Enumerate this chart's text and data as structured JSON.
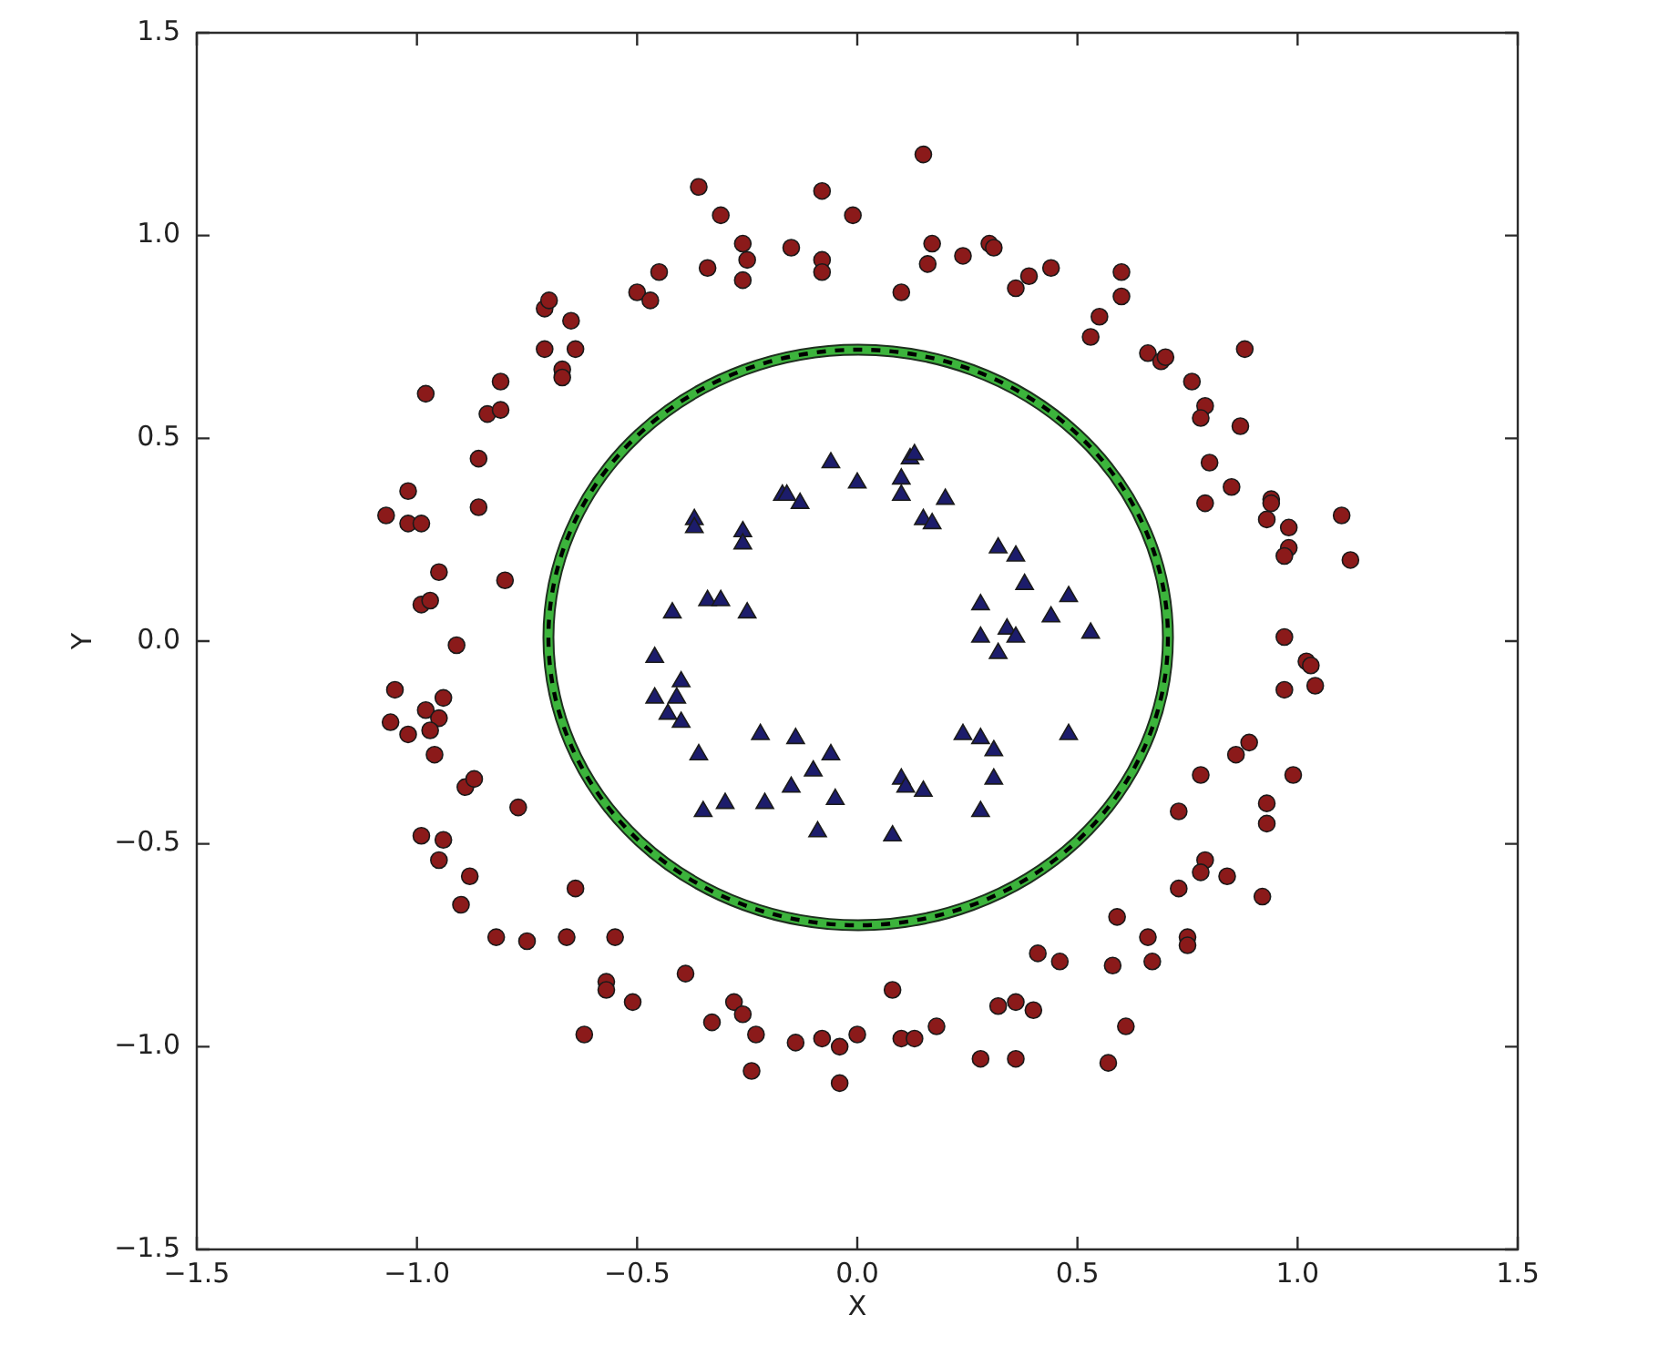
{
  "chart_data": {
    "type": "scatter",
    "xlabel": "X",
    "ylabel": "Y",
    "xlim": [
      -1.5,
      1.5
    ],
    "ylim": [
      -1.5,
      1.5
    ],
    "xticks": [
      {
        "value": -1.5,
        "label": "−1.5"
      },
      {
        "value": -1,
        "label": "−1.0"
      },
      {
        "value": -0.5,
        "label": "−0.5"
      },
      {
        "value": 0,
        "label": "0.0"
      },
      0.5,
      {
        "value": 1,
        "label": "1.0"
      },
      1.5
    ],
    "yticks": [
      {
        "value": -1.5,
        "label": "−1.5"
      },
      {
        "value": -1,
        "label": "−1.0"
      },
      {
        "value": -0.5,
        "label": "−0.5"
      },
      {
        "value": 0,
        "label": "0.0"
      },
      0.5,
      {
        "value": 1,
        "label": "1.0"
      },
      1.5
    ],
    "series": [
      {
        "type": "scatter",
        "marker": "circle",
        "color": "#8b1a1a",
        "x": [
          -0.36,
          -0.31,
          -0.08,
          -0.01,
          0.15,
          -0.26,
          -0.25,
          -0.26,
          -0.15,
          -0.34,
          -0.45,
          -0.5,
          -0.47,
          -0.08,
          -0.08,
          0.1,
          0.16,
          0.17,
          0.24,
          0.3,
          0.31,
          0.36,
          0.39,
          0.44,
          -0.71,
          -0.7,
          -0.65,
          -0.71,
          -0.64,
          -0.67,
          -0.67,
          -0.81,
          -0.98,
          -0.84,
          -0.81,
          -0.86,
          -1.02,
          -1.07,
          -1.02,
          -0.99,
          -0.86,
          -0.95,
          -0.8,
          -0.99,
          -0.97,
          -0.91,
          -1.05,
          -0.94,
          -0.98,
          -0.95,
          -1.06,
          -1.02,
          -0.97,
          -0.96,
          -0.89,
          -0.87,
          -0.77,
          -0.99,
          -0.94,
          -0.95,
          -0.88,
          -0.9,
          -0.82,
          -0.75,
          -0.64,
          -0.66,
          -0.55,
          -0.57,
          -0.57,
          -0.51,
          -0.62,
          -0.39,
          -0.28,
          -0.26,
          -0.33,
          -0.23,
          -0.14,
          -0.08,
          -0.04,
          0,
          -0.24,
          -0.04,
          0.08,
          0.1,
          0.13,
          0.18,
          0.28,
          0.32,
          0.36,
          0.4,
          0.36,
          0.41,
          0.46,
          0.97,
          1.02,
          1.03,
          0.97,
          1.04,
          0.89,
          0.86,
          0.99,
          0.78,
          0.93,
          0.93,
          0.73,
          0.79,
          0.78,
          0.84,
          0.73,
          0.92,
          0.59,
          0.66,
          0.75,
          0.75,
          0.58,
          0.67,
          0.61,
          0.57,
          0.6,
          0.6,
          0.55,
          0.53,
          0.66,
          0.69,
          0.7,
          0.88,
          0.76,
          0.79,
          0.78,
          0.87,
          0.8,
          0.85,
          0.79,
          0.94,
          0.94,
          0.93,
          0.98,
          0.98,
          0.97,
          1.1,
          1.12
        ],
        "values": [
          1.12,
          1.05,
          1.11,
          1.05,
          1.2,
          0.98,
          0.94,
          0.89,
          0.97,
          0.92,
          0.91,
          0.86,
          0.84,
          0.94,
          0.91,
          0.86,
          0.93,
          0.98,
          0.95,
          0.98,
          0.97,
          0.87,
          0.9,
          0.92,
          0.82,
          0.84,
          0.79,
          0.72,
          0.72,
          0.67,
          0.65,
          0.64,
          0.61,
          0.56,
          0.57,
          0.45,
          0.37,
          0.31,
          0.29,
          0.29,
          0.33,
          0.17,
          0.15,
          0.09,
          0.1,
          -0.01,
          -0.12,
          -0.14,
          -0.17,
          -0.19,
          -0.2,
          -0.23,
          -0.22,
          -0.28,
          -0.36,
          -0.34,
          -0.41,
          -0.48,
          -0.49,
          -0.54,
          -0.58,
          -0.65,
          -0.73,
          -0.74,
          -0.61,
          -0.73,
          -0.73,
          -0.84,
          -0.86,
          -0.89,
          -0.97,
          -0.82,
          -0.89,
          -0.92,
          -0.94,
          -0.97,
          -0.99,
          -0.98,
          -1,
          -0.97,
          -1.06,
          -1.09,
          -0.86,
          -0.98,
          -0.98,
          -0.95,
          -1.03,
          -0.9,
          -0.89,
          -0.91,
          -1.03,
          -0.77,
          -0.79,
          0.01,
          -0.05,
          -0.06,
          -0.12,
          -0.11,
          -0.25,
          -0.28,
          -0.33,
          -0.33,
          -0.4,
          -0.45,
          -0.42,
          -0.54,
          -0.57,
          -0.58,
          -0.61,
          -0.63,
          -0.68,
          -0.73,
          -0.73,
          -0.75,
          -0.8,
          -0.79,
          -0.95,
          -1.04,
          0.91,
          0.85,
          0.8,
          0.75,
          0.71,
          0.69,
          0.7,
          0.72,
          0.64,
          0.58,
          0.55,
          0.53,
          0.44,
          0.38,
          0.34,
          0.35,
          0.34,
          0.3,
          0.28,
          0.23,
          0.21,
          0.31,
          0.2
        ]
      },
      {
        "type": "scatter",
        "marker": "triangle",
        "color": "#1c1c6b",
        "x": [
          -0.06,
          0,
          0.12,
          0.13,
          0.1,
          0.1,
          0.2,
          0.15,
          0.17,
          -0.17,
          -0.16,
          -0.13,
          -0.37,
          -0.37,
          -0.26,
          -0.26,
          -0.42,
          -0.34,
          -0.31,
          -0.25,
          -0.46,
          0.32,
          0.36,
          0.38,
          0.48,
          0.28,
          0.44,
          0.28,
          0.34,
          0.36,
          0.32,
          0.53,
          0.48,
          -0.4,
          -0.46,
          -0.41,
          -0.43,
          -0.4,
          -0.36,
          -0.22,
          -0.14,
          -0.06,
          -0.1,
          -0.15,
          -0.05,
          -0.3,
          -0.35,
          -0.21,
          -0.09,
          0.08,
          0.1,
          0.11,
          0.15,
          0.24,
          0.28,
          0.31,
          0.31,
          0.28
        ],
        "values": [
          0.44,
          0.39,
          0.45,
          0.46,
          0.4,
          0.36,
          0.35,
          0.3,
          0.29,
          0.36,
          0.36,
          0.34,
          0.3,
          0.28,
          0.27,
          0.24,
          0.07,
          0.1,
          0.1,
          0.07,
          -0.04,
          0.23,
          0.21,
          0.14,
          0.11,
          0.09,
          0.06,
          0.01,
          0.03,
          0.01,
          -0.03,
          0.02,
          -0.23,
          -0.1,
          -0.14,
          -0.14,
          -0.18,
          -0.2,
          -0.28,
          -0.23,
          -0.24,
          -0.28,
          -0.32,
          -0.36,
          -0.39,
          -0.4,
          -0.42,
          -0.4,
          -0.47,
          -0.48,
          -0.34,
          -0.36,
          -0.37,
          -0.23,
          -0.24,
          -0.27,
          -0.34,
          -0.42
        ]
      }
    ]
  }
}
